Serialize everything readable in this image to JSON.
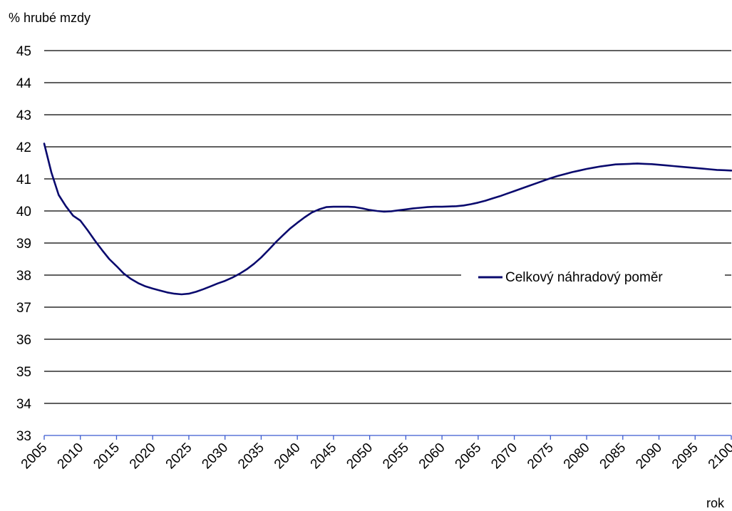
{
  "chart_data": {
    "type": "line",
    "title": "",
    "ylabel": "% hrubé mzdy",
    "xlabel": "rok",
    "ylim": [
      33,
      45
    ],
    "yticks": [
      "33",
      "34",
      "35",
      "36",
      "37",
      "38",
      "39",
      "40",
      "41",
      "42",
      "43",
      "44",
      "45"
    ],
    "xlim": [
      2005,
      2100
    ],
    "xticks": [
      "2005",
      "2010",
      "2015",
      "2020",
      "2025",
      "2030",
      "2035",
      "2040",
      "2045",
      "2050",
      "2055",
      "2060",
      "2065",
      "2070",
      "2075",
      "2080",
      "2085",
      "2090",
      "2095",
      "2100"
    ],
    "grid": true,
    "legend": "right",
    "colors": {
      "series": "#0a0a6e",
      "grid": "#000000",
      "x_axis": "#3a5ad0"
    },
    "series": [
      {
        "name": "Celkový náhradový poměr",
        "x": [
          2005,
          2006,
          2007,
          2008,
          2009,
          2010,
          2011,
          2012,
          2013,
          2014,
          2015,
          2016,
          2017,
          2018,
          2019,
          2020,
          2021,
          2022,
          2023,
          2024,
          2025,
          2026,
          2027,
          2028,
          2029,
          2030,
          2031,
          2032,
          2033,
          2034,
          2035,
          2036,
          2037,
          2038,
          2039,
          2040,
          2041,
          2042,
          2043,
          2044,
          2045,
          2046,
          2047,
          2048,
          2049,
          2050,
          2051,
          2052,
          2053,
          2054,
          2055,
          2056,
          2057,
          2058,
          2059,
          2060,
          2061,
          2062,
          2063,
          2064,
          2065,
          2066,
          2067,
          2068,
          2069,
          2070,
          2071,
          2072,
          2073,
          2074,
          2075,
          2076,
          2077,
          2078,
          2079,
          2080,
          2081,
          2082,
          2083,
          2084,
          2085,
          2086,
          2087,
          2088,
          2089,
          2090,
          2091,
          2092,
          2093,
          2094,
          2095,
          2096,
          2097,
          2098,
          2099,
          2100
        ],
        "values": [
          42.1,
          41.2,
          40.5,
          40.15,
          39.85,
          39.7,
          39.4,
          39.08,
          38.78,
          38.5,
          38.28,
          38.05,
          37.88,
          37.75,
          37.65,
          37.58,
          37.52,
          37.46,
          37.42,
          37.4,
          37.42,
          37.48,
          37.56,
          37.65,
          37.74,
          37.82,
          37.92,
          38.04,
          38.18,
          38.35,
          38.55,
          38.78,
          39.02,
          39.24,
          39.45,
          39.63,
          39.8,
          39.95,
          40.05,
          40.12,
          40.13,
          40.13,
          40.13,
          40.12,
          40.08,
          40.03,
          40.0,
          39.98,
          39.99,
          40.02,
          40.05,
          40.08,
          40.1,
          40.12,
          40.13,
          40.13,
          40.14,
          40.15,
          40.17,
          40.21,
          40.26,
          40.32,
          40.39,
          40.46,
          40.54,
          40.62,
          40.7,
          40.78,
          40.86,
          40.94,
          41.02,
          41.09,
          41.15,
          41.21,
          41.26,
          41.31,
          41.35,
          41.39,
          41.42,
          41.45,
          41.46,
          41.47,
          41.48,
          41.47,
          41.46,
          41.44,
          41.42,
          41.4,
          41.38,
          41.36,
          41.34,
          41.32,
          41.3,
          41.28,
          41.27,
          41.26
        ]
      }
    ]
  }
}
